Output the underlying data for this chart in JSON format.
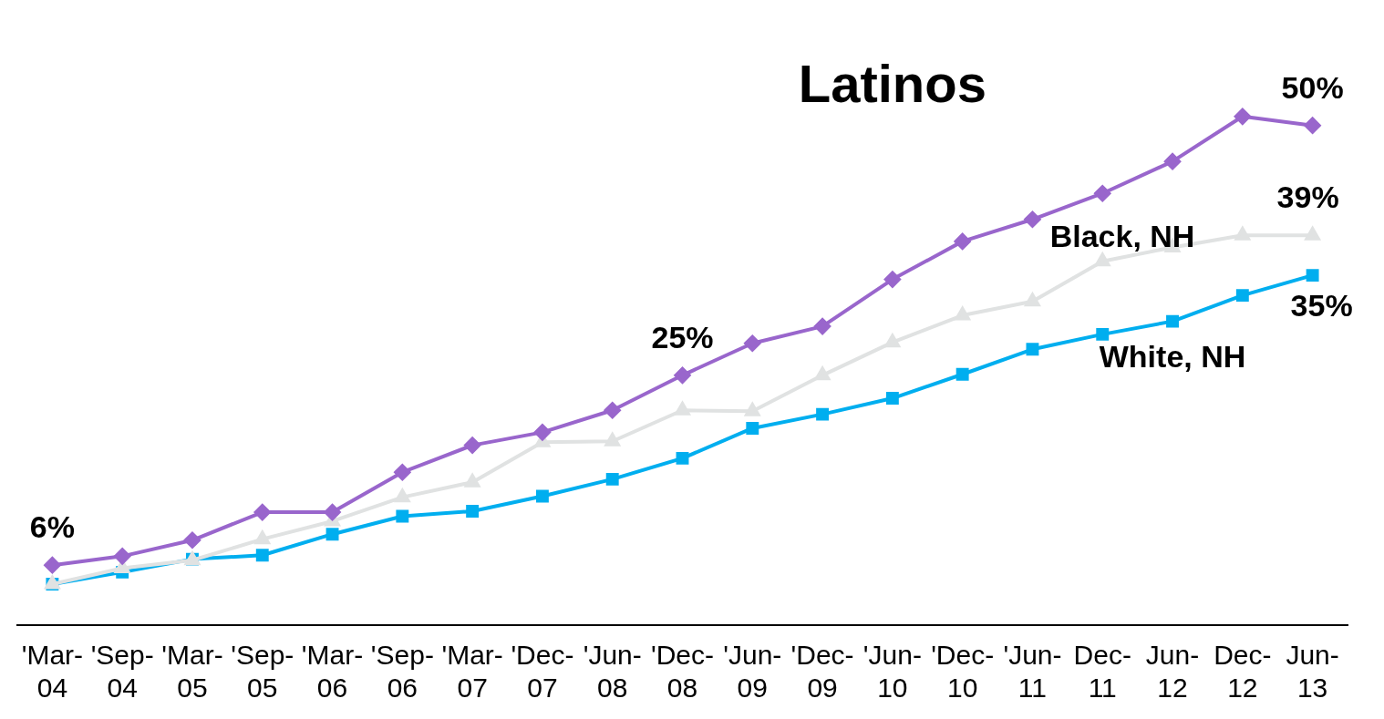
{
  "chart_data": {
    "type": "line",
    "categories": [
      "'Mar-04",
      "'Sep-04",
      "'Mar-05",
      "'Sep-05",
      "'Mar-06",
      "'Sep-06",
      "'Mar-07",
      "'Dec-07",
      "'Jun-08",
      "'Dec-08",
      "'Jun-09",
      "'Dec-09",
      "'Jun-10",
      "'Dec-10",
      "'Jun-11",
      "Dec-11",
      "Jun-12",
      "Dec-12",
      "Jun-13"
    ],
    "grid": false,
    "legend": false,
    "series": [
      {
        "name": "Latinos",
        "color": "#9966cc",
        "marker": "diamond",
        "values": [
          6.0,
          6.9,
          8.5,
          11.3,
          11.3,
          15.3,
          18.0,
          19.3,
          21.5,
          25.0,
          28.2,
          29.9,
          34.6,
          38.4,
          40.6,
          43.2,
          46.4,
          50.9,
          50.0
        ],
        "value_labels": [
          "6%",
          null,
          null,
          null,
          null,
          null,
          null,
          null,
          null,
          "25%",
          null,
          null,
          null,
          null,
          null,
          null,
          null,
          null,
          "50%"
        ]
      },
      {
        "name": "Black, NH",
        "color": "#e0e2e2",
        "marker": "triangle",
        "values": [
          4.1,
          5.7,
          6.5,
          8.6,
          10.4,
          12.8,
          14.3,
          18.3,
          18.4,
          21.5,
          21.4,
          25.0,
          28.3,
          31.0,
          32.4,
          36.4,
          37.8,
          39.0,
          39.0
        ],
        "value_labels": [
          null,
          null,
          null,
          null,
          null,
          null,
          null,
          null,
          null,
          null,
          null,
          null,
          null,
          null,
          null,
          null,
          null,
          null,
          "39%"
        ]
      },
      {
        "name": "White, NH",
        "color": "#00aeef",
        "marker": "square",
        "values": [
          4.1,
          5.3,
          6.6,
          7.0,
          9.1,
          10.9,
          11.4,
          12.9,
          14.6,
          16.7,
          19.7,
          21.1,
          22.7,
          25.1,
          27.6,
          29.1,
          30.4,
          33.0,
          35.0
        ],
        "value_labels": [
          null,
          null,
          null,
          null,
          null,
          null,
          null,
          null,
          null,
          null,
          null,
          null,
          null,
          null,
          null,
          null,
          null,
          null,
          "35%"
        ]
      }
    ]
  }
}
